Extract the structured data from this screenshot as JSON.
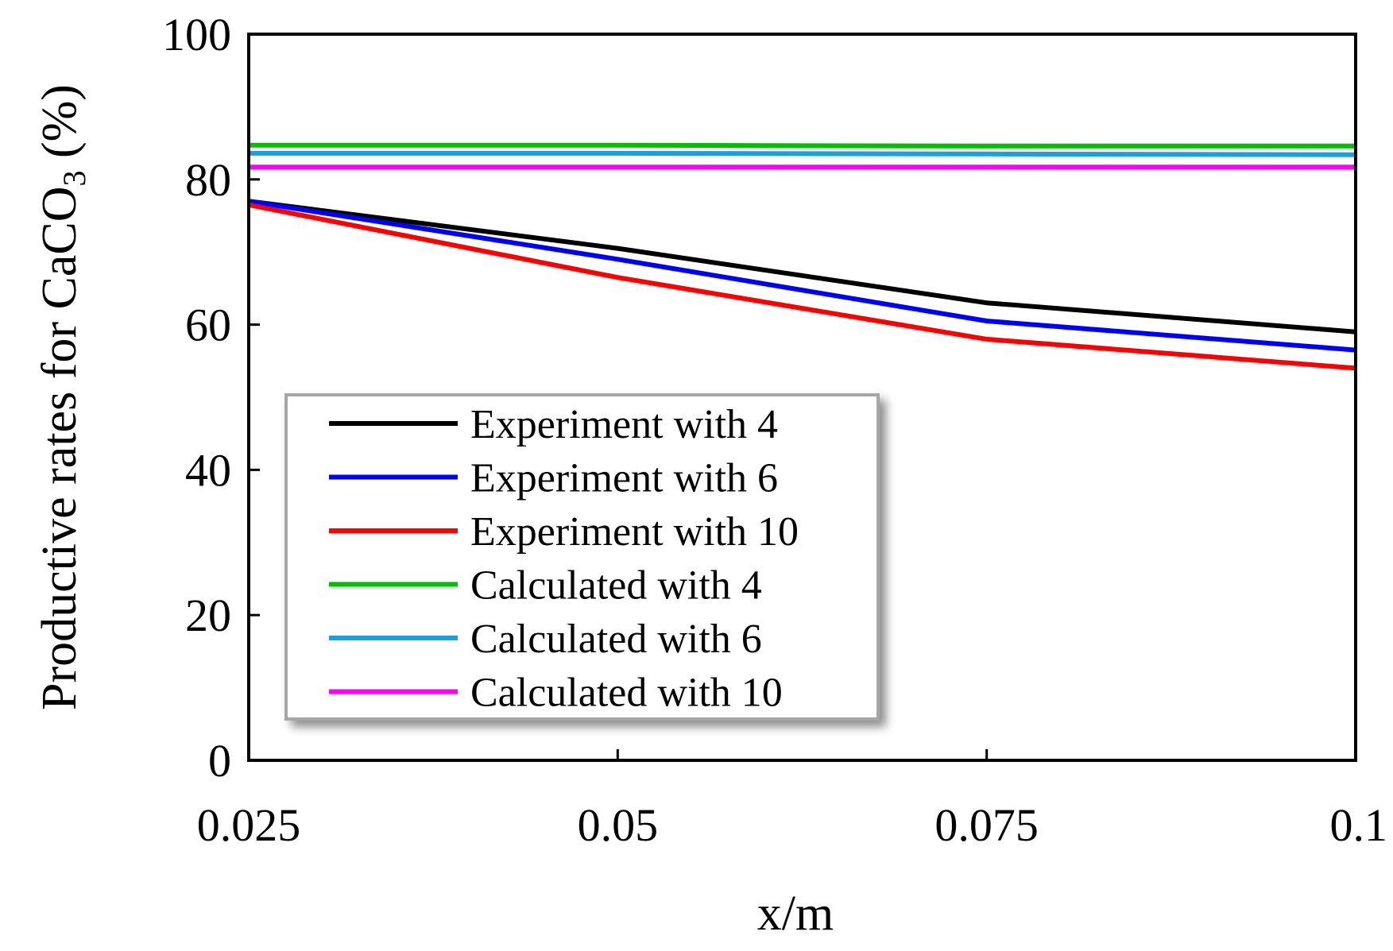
{
  "chart_data": {
    "type": "line",
    "title": "",
    "xlabel": "x/m",
    "ylabel_main": "Productive rates for CaCO",
    "ylabel_subscript": "3",
    "ylabel_suffix": " (%)",
    "xlim": [
      0.025,
      0.1
    ],
    "ylim": [
      0,
      100
    ],
    "x_ticks": [
      0.025,
      0.05,
      0.075,
      0.1
    ],
    "x_tick_labels": [
      "0.025",
      "0.05",
      "0.075",
      "0.1"
    ],
    "y_ticks": [
      0,
      20,
      40,
      60,
      80,
      100
    ],
    "y_tick_labels": [
      "0",
      "20",
      "40",
      "60",
      "80",
      "100"
    ],
    "grid": false,
    "legend_position": "lower-left",
    "x": [
      0.025,
      0.05,
      0.075,
      0.1
    ],
    "series": [
      {
        "name": "Experiment with 4",
        "color": "#000000",
        "values": [
          77.0,
          70.5,
          63.0,
          59.0
        ]
      },
      {
        "name": "Experiment with 6",
        "color": "#0000ff",
        "values": [
          77.0,
          69.0,
          60.5,
          56.5
        ]
      },
      {
        "name": "Experiment with 10",
        "color": "#ff0000",
        "values": [
          76.5,
          66.5,
          58.0,
          54.0
        ]
      },
      {
        "name": "Calculated with 4",
        "color": "#00c000",
        "values": [
          84.7,
          84.7,
          84.6,
          84.6
        ]
      },
      {
        "name": "Calculated with 6",
        "color": "#1a9fe0",
        "values": [
          83.6,
          83.6,
          83.5,
          83.4
        ]
      },
      {
        "name": "Calculated with 10",
        "color": "#ff00ff",
        "values": [
          81.7,
          81.7,
          81.7,
          81.7
        ]
      }
    ]
  }
}
